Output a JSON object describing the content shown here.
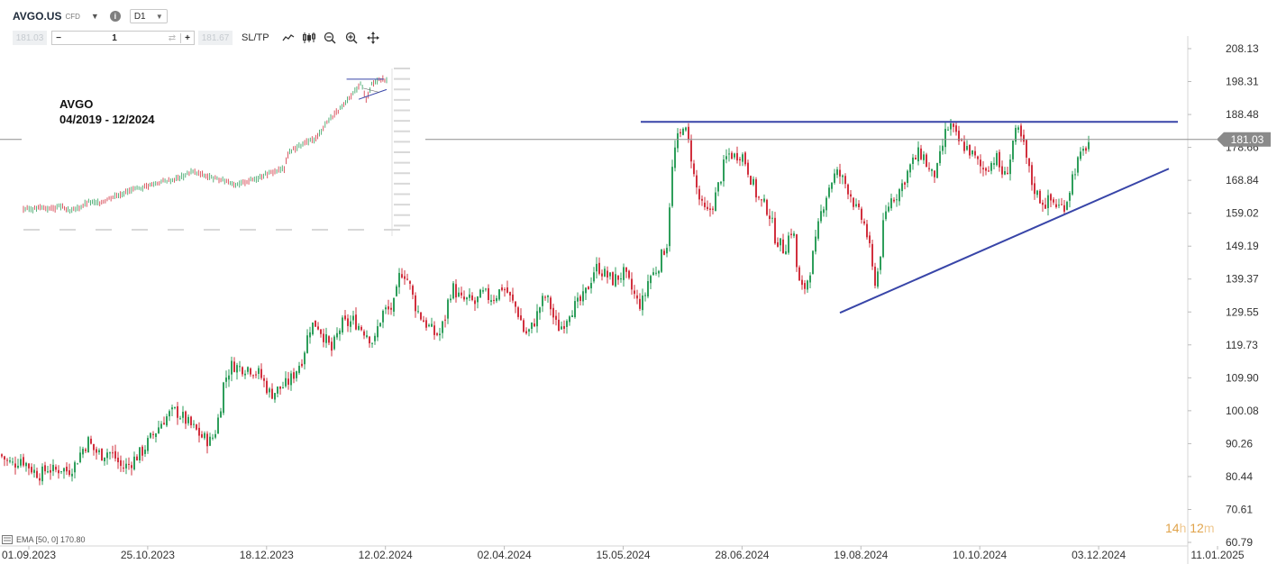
{
  "header": {
    "symbol": "AVGO.US",
    "instrument_type": "CFD",
    "timeframe": "D1",
    "sell_price": "181.03",
    "buy_price": "181.67",
    "quantity": "1",
    "sltp_label": "SL/TP",
    "icons": [
      "dropdown-caret-icon",
      "info-icon",
      "chevron-down-icon",
      "minus-icon",
      "swap-icon",
      "plus-icon",
      "line-chart-icon",
      "candles-icon",
      "zoom-out-icon",
      "zoom-in-icon",
      "crosshair-icon"
    ]
  },
  "inset": {
    "title_line1": "AVGO",
    "title_line2": "04/2019 - 12/2024"
  },
  "indicator_label": "EMA [50, 0] 170.80",
  "timer": {
    "hours": "14",
    "h_unit": "h",
    "minutes": "12",
    "m_unit": "m"
  },
  "colors": {
    "up": "#2e9e5b",
    "down": "#d1303e",
    "trendline": "#3845a8",
    "price_tag": "#8a8a8a",
    "timer": "#e0a34a"
  },
  "chart_data": {
    "type": "candlestick",
    "x_axis_labels": [
      "01.09.2023",
      "25.10.2023",
      "18.12.2023",
      "12.02.2024",
      "02.04.2024",
      "15.05.2024",
      "28.06.2024",
      "19.08.2024",
      "10.10.2024",
      "03.12.2024",
      "11.01.2025"
    ],
    "y_axis_labels": [
      "208.13",
      "198.31",
      "188.48",
      "178.66",
      "168.84",
      "159.02",
      "149.19",
      "139.37",
      "129.55",
      "119.73",
      "109.90",
      "100.08",
      "90.26",
      "80.44",
      "70.61",
      "60.79"
    ],
    "ylim": [
      60.79,
      208.13
    ],
    "last_price": 181.03,
    "series_path": [
      [
        0,
        87
      ],
      [
        8,
        85
      ],
      [
        15,
        84
      ],
      [
        23,
        86
      ],
      [
        30,
        84
      ],
      [
        38,
        82
      ],
      [
        45,
        81
      ],
      [
        53,
        83
      ],
      [
        60,
        82
      ],
      [
        68,
        83
      ],
      [
        75,
        82
      ],
      [
        83,
        84
      ],
      [
        90,
        88
      ],
      [
        98,
        91
      ],
      [
        105,
        88
      ],
      [
        113,
        87
      ],
      [
        120,
        88
      ],
      [
        128,
        86
      ],
      [
        135,
        83
      ],
      [
        143,
        84
      ],
      [
        150,
        86
      ],
      [
        158,
        88
      ],
      [
        165,
        91
      ],
      [
        173,
        94
      ],
      [
        180,
        97
      ],
      [
        188,
        99
      ],
      [
        195,
        100
      ],
      [
        203,
        98
      ],
      [
        210,
        96
      ],
      [
        218,
        94
      ],
      [
        225,
        92
      ],
      [
        233,
        91
      ],
      [
        238,
        93
      ],
      [
        244,
        100
      ],
      [
        248,
        108
      ],
      [
        252,
        111
      ],
      [
        258,
        114
      ],
      [
        264,
        113
      ],
      [
        270,
        113
      ],
      [
        276,
        113
      ],
      [
        282,
        112
      ],
      [
        288,
        111
      ],
      [
        294,
        108
      ],
      [
        300,
        105
      ],
      [
        306,
        106
      ],
      [
        312,
        107
      ],
      [
        318,
        108
      ],
      [
        324,
        110
      ],
      [
        330,
        113
      ],
      [
        336,
        116
      ],
      [
        340,
        121
      ],
      [
        344,
        125
      ],
      [
        348,
        126
      ],
      [
        352,
        126
      ],
      [
        356,
        124
      ],
      [
        360,
        122
      ],
      [
        364,
        120
      ],
      [
        368,
        118
      ],
      [
        372,
        121
      ],
      [
        376,
        124
      ],
      [
        380,
        126
      ],
      [
        386,
        126
      ],
      [
        392,
        127
      ],
      [
        396,
        126
      ],
      [
        400,
        125
      ],
      [
        404,
        124
      ],
      [
        408,
        123
      ],
      [
        412,
        121
      ],
      [
        416,
        121
      ],
      [
        420,
        126
      ],
      [
        426,
        130
      ],
      [
        432,
        130
      ],
      [
        438,
        132
      ],
      [
        443,
        140
      ],
      [
        447,
        142
      ],
      [
        451,
        140
      ],
      [
        455,
        137
      ],
      [
        460,
        132
      ],
      [
        465,
        129
      ],
      [
        470,
        127
      ],
      [
        476,
        125
      ],
      [
        482,
        123
      ],
      [
        488,
        123
      ],
      [
        494,
        128
      ],
      [
        498,
        134
      ],
      [
        502,
        137
      ],
      [
        507,
        135
      ],
      [
        512,
        133
      ],
      [
        517,
        133
      ],
      [
        522,
        133
      ],
      [
        527,
        132
      ],
      [
        532,
        134
      ],
      [
        537,
        135
      ],
      [
        542,
        134
      ],
      [
        547,
        134
      ],
      [
        552,
        135
      ],
      [
        557,
        137
      ],
      [
        562,
        136
      ],
      [
        567,
        133
      ],
      [
        572,
        131
      ],
      [
        577,
        128
      ],
      [
        581,
        124
      ],
      [
        585,
        123
      ],
      [
        590,
        125
      ],
      [
        595,
        128
      ],
      [
        600,
        132
      ],
      [
        605,
        134
      ],
      [
        610,
        132
      ],
      [
        614,
        128
      ],
      [
        618,
        125
      ],
      [
        622,
        125
      ],
      [
        627,
        127
      ],
      [
        632,
        130
      ],
      [
        637,
        131
      ],
      [
        642,
        132
      ],
      [
        648,
        134
      ],
      [
        654,
        138
      ],
      [
        659,
        142
      ],
      [
        664,
        143
      ],
      [
        670,
        141
      ],
      [
        675,
        140
      ],
      [
        680,
        139
      ],
      [
        686,
        140
      ],
      [
        692,
        141
      ],
      [
        698,
        138
      ],
      [
        703,
        135
      ],
      [
        708,
        132
      ],
      [
        712,
        132
      ],
      [
        716,
        135
      ],
      [
        720,
        140
      ],
      [
        725,
        141
      ],
      [
        730,
        143
      ],
      [
        735,
        147
      ],
      [
        740,
        150
      ],
      [
        745,
        170
      ],
      [
        749,
        178
      ],
      [
        752,
        181
      ],
      [
        755,
        182
      ],
      [
        758,
        186
      ],
      [
        762,
        182
      ],
      [
        766,
        178
      ],
      [
        770,
        170
      ],
      [
        775,
        164
      ],
      [
        780,
        160
      ],
      [
        785,
        159
      ],
      [
        790,
        161
      ],
      [
        795,
        165
      ],
      [
        800,
        170
      ],
      [
        805,
        175
      ],
      [
        810,
        177
      ],
      [
        815,
        176
      ],
      [
        820,
        177
      ],
      [
        825,
        176
      ],
      [
        830,
        172
      ],
      [
        835,
        168
      ],
      [
        840,
        164
      ],
      [
        845,
        162
      ],
      [
        850,
        161
      ],
      [
        855,
        158
      ],
      [
        860,
        152
      ],
      [
        865,
        150
      ],
      [
        870,
        148
      ],
      [
        875,
        152
      ],
      [
        880,
        155
      ],
      [
        885,
        140
      ],
      [
        889,
        136
      ],
      [
        893,
        137
      ],
      [
        897,
        140
      ],
      [
        901,
        145
      ],
      [
        905,
        150
      ],
      [
        910,
        158
      ],
      [
        915,
        163
      ],
      [
        920,
        167
      ],
      [
        925,
        170
      ],
      [
        930,
        171
      ],
      [
        935,
        169
      ],
      [
        940,
        167
      ],
      [
        945,
        164
      ],
      [
        950,
        160
      ],
      [
        955,
        158
      ],
      [
        960,
        155
      ],
      [
        964,
        150
      ],
      [
        968,
        142
      ],
      [
        972,
        138
      ],
      [
        976,
        145
      ],
      [
        980,
        155
      ],
      [
        984,
        160
      ],
      [
        988,
        163
      ],
      [
        992,
        164
      ],
      [
        996,
        165
      ],
      [
        1000,
        167
      ],
      [
        1005,
        170
      ],
      [
        1010,
        173
      ],
      [
        1015,
        175
      ],
      [
        1020,
        177
      ],
      [
        1025,
        176
      ],
      [
        1030,
        172
      ],
      [
        1035,
        170
      ],
      [
        1040,
        172
      ],
      [
        1045,
        178
      ],
      [
        1050,
        184
      ],
      [
        1055,
        185
      ],
      [
        1060,
        182
      ],
      [
        1065,
        180
      ],
      [
        1070,
        179
      ],
      [
        1075,
        178
      ],
      [
        1080,
        176
      ],
      [
        1085,
        174
      ],
      [
        1090,
        172
      ],
      [
        1095,
        173
      ],
      [
        1100,
        174
      ],
      [
        1105,
        176
      ],
      [
        1110,
        172
      ],
      [
        1115,
        170
      ],
      [
        1120,
        174
      ],
      [
        1125,
        182
      ],
      [
        1130,
        183
      ],
      [
        1135,
        180
      ],
      [
        1140,
        174
      ],
      [
        1145,
        168
      ],
      [
        1150,
        165
      ],
      [
        1155,
        163
      ],
      [
        1160,
        162
      ],
      [
        1165,
        163
      ],
      [
        1170,
        162
      ],
      [
        1175,
        161
      ],
      [
        1180,
        161
      ],
      [
        1185,
        164
      ],
      [
        1190,
        170
      ],
      [
        1195,
        174
      ],
      [
        1200,
        176
      ],
      [
        1205,
        179
      ],
      [
        1210,
        181.03
      ]
    ],
    "annotations": [
      {
        "type": "trendline",
        "label": "resistance",
        "points": [
          [
            711,
            186.3
          ],
          [
            1307,
            186.3
          ]
        ]
      },
      {
        "type": "trendline",
        "label": "support",
        "points": [
          [
            932,
            129.3
          ],
          [
            1297,
            172.3
          ]
        ]
      }
    ],
    "inset_chart": {
      "type": "candlestick",
      "range": "04/2019 - 12/2024",
      "path": [
        [
          0,
          0.04
        ],
        [
          10,
          0.04
        ],
        [
          20,
          0.05
        ],
        [
          30,
          0.04
        ],
        [
          40,
          0.06
        ],
        [
          50,
          0.02
        ],
        [
          60,
          0.05
        ],
        [
          70,
          0.09
        ],
        [
          80,
          0.08
        ],
        [
          90,
          0.11
        ],
        [
          100,
          0.14
        ],
        [
          110,
          0.16
        ],
        [
          120,
          0.18
        ],
        [
          130,
          0.2
        ],
        [
          140,
          0.22
        ],
        [
          150,
          0.24
        ],
        [
          160,
          0.25
        ],
        [
          170,
          0.27
        ],
        [
          180,
          0.31
        ],
        [
          190,
          0.29
        ],
        [
          200,
          0.27
        ],
        [
          210,
          0.25
        ],
        [
          220,
          0.24
        ],
        [
          230,
          0.21
        ],
        [
          240,
          0.24
        ],
        [
          250,
          0.26
        ],
        [
          260,
          0.29
        ],
        [
          270,
          0.31
        ],
        [
          280,
          0.33
        ],
        [
          285,
          0.45
        ],
        [
          295,
          0.49
        ],
        [
          305,
          0.52
        ],
        [
          315,
          0.55
        ],
        [
          325,
          0.66
        ],
        [
          335,
          0.73
        ],
        [
          345,
          0.79
        ],
        [
          355,
          0.88
        ],
        [
          362,
          0.95
        ],
        [
          368,
          0.83
        ],
        [
          374,
          0.94
        ],
        [
          382,
          0.98
        ],
        [
          390,
          0.96
        ]
      ]
    }
  }
}
